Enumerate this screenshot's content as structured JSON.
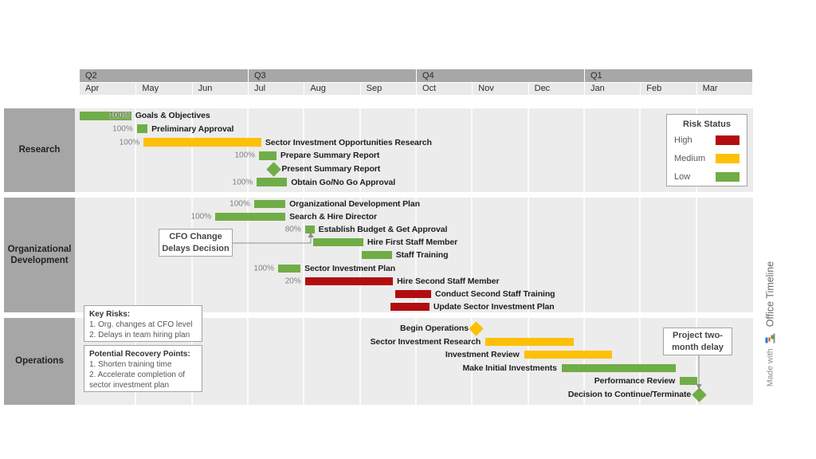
{
  "header": {
    "quarters": [
      "Q2",
      "Q3",
      "Q4",
      "Q1"
    ],
    "months": [
      "Apr",
      "May",
      "Jun",
      "Jul",
      "Aug",
      "Sep",
      "Oct",
      "Nov",
      "Dec",
      "Jan",
      "Feb",
      "Mar"
    ]
  },
  "legend": {
    "title": "Risk Status",
    "items": [
      {
        "label": "High",
        "color": "#b20d11"
      },
      {
        "label": "Medium",
        "color": "#fdc008"
      },
      {
        "label": "Low",
        "color": "#70ad47"
      }
    ]
  },
  "risk_colors": {
    "high": "#b20d11",
    "medium": "#fdc008",
    "low": "#70ad47"
  },
  "chart_data": {
    "type": "gantt-timeline",
    "time_axis": {
      "unit": "months_from_april",
      "quarters": [
        "Q2",
        "Q3",
        "Q4",
        "Q1"
      ],
      "months": [
        "Apr",
        "May",
        "Jun",
        "Jul",
        "Aug",
        "Sep",
        "Oct",
        "Nov",
        "Dec",
        "Jan",
        "Feb",
        "Mar"
      ]
    },
    "lanes": [
      {
        "name": "Research",
        "tasks": [
          {
            "label": "Goals & Objectives",
            "percent": "100%",
            "percent_inside": true,
            "type": "bar",
            "risk": "low",
            "start": 0.0,
            "end": 0.92,
            "label_side": "right"
          },
          {
            "label": "Preliminary Approval",
            "percent": "100%",
            "type": "bar",
            "risk": "low",
            "start": 1.02,
            "end": 1.21,
            "label_side": "right"
          },
          {
            "label": "Sector Investment Opportunities Research",
            "percent": "100%",
            "type": "bar",
            "risk": "medium",
            "start": 1.14,
            "end": 3.24,
            "label_side": "right"
          },
          {
            "label": "Prepare Summary Report",
            "percent": "100%",
            "type": "bar",
            "risk": "low",
            "start": 3.2,
            "end": 3.51,
            "label_side": "right"
          },
          {
            "label": "Present Summary Report",
            "type": "milestone",
            "risk": "low",
            "position": 3.46,
            "label_side": "right"
          },
          {
            "label": "Obtain Go/No Go Approval",
            "percent": "100%",
            "type": "bar",
            "risk": "low",
            "start": 3.16,
            "end": 3.7,
            "label_side": "right"
          }
        ]
      },
      {
        "name": "Organizational Development",
        "tasks": [
          {
            "label": "Organizational Development Plan",
            "percent": "100%",
            "type": "bar",
            "risk": "low",
            "start": 3.11,
            "end": 3.67,
            "label_side": "right"
          },
          {
            "label": "Search & Hire Director",
            "percent": "100%",
            "type": "bar",
            "risk": "low",
            "start": 2.42,
            "end": 3.67,
            "label_side": "right"
          },
          {
            "label": "Establish Budget & Get Approval",
            "percent": "80%",
            "type": "bar",
            "risk": "low",
            "start": 4.02,
            "end": 4.19,
            "label_side": "right"
          },
          {
            "label": "Hire First Staff Member",
            "type": "bar",
            "risk": "low",
            "start": 4.17,
            "end": 5.06,
            "label_side": "right"
          },
          {
            "label": "Staff Training",
            "type": "bar",
            "risk": "low",
            "start": 5.03,
            "end": 5.57,
            "label_side": "right"
          },
          {
            "label": "Sector Investment Plan",
            "percent": "100%",
            "type": "bar",
            "risk": "low",
            "start": 3.54,
            "end": 3.94,
            "label_side": "right"
          },
          {
            "label": "Hire Second Staff Member",
            "percent": "20%",
            "type": "bar",
            "risk": "high",
            "start": 4.02,
            "end": 5.59,
            "label_side": "right"
          },
          {
            "label": "Conduct Second Staff Training",
            "type": "bar",
            "risk": "high",
            "start": 5.63,
            "end": 6.27,
            "label_side": "right"
          },
          {
            "label": "Update Sector Investment Plan",
            "type": "bar",
            "risk": "high",
            "start": 5.55,
            "end": 6.24,
            "label_side": "right"
          }
        ]
      },
      {
        "name": "Operations",
        "tasks": [
          {
            "label": "Begin Operations",
            "type": "milestone",
            "risk": "medium",
            "position": 7.08,
            "label_side": "left"
          },
          {
            "label": "Sector Investment Research",
            "type": "bar",
            "risk": "medium",
            "start": 7.24,
            "end": 8.82,
            "label_side": "left"
          },
          {
            "label": "Investment Review",
            "type": "bar",
            "risk": "medium",
            "start": 7.93,
            "end": 9.5,
            "label_side": "left"
          },
          {
            "label": "Make Initial Investments",
            "type": "bar",
            "risk": "low",
            "start": 8.6,
            "end": 10.64,
            "label_side": "left"
          },
          {
            "label": "Performance Review",
            "type": "bar",
            "risk": "low",
            "start": 10.71,
            "end": 11.02,
            "label_side": "left"
          },
          {
            "label": "Decision to Continue/Terminate",
            "type": "milestone",
            "risk": "low",
            "position": 11.05,
            "label_side": "left"
          }
        ]
      }
    ]
  },
  "callouts": {
    "cfo": {
      "lines": [
        "CFO Change",
        "Delays Decision"
      ]
    },
    "project_delay": {
      "lines": [
        "Project two-",
        "month delay"
      ]
    },
    "key_risks": {
      "title": "Key Risks:",
      "lines": [
        "1. Org. changes at CFO level",
        "2. Delays in team hiring plan"
      ]
    },
    "recovery": {
      "title": "Potential Recovery Points:",
      "lines": [
        "1. Shorten training time",
        "2. Accelerate completion of",
        "sector investment plan"
      ]
    }
  },
  "branding": {
    "made_with": "Made with",
    "brand": "Office Timeline"
  }
}
